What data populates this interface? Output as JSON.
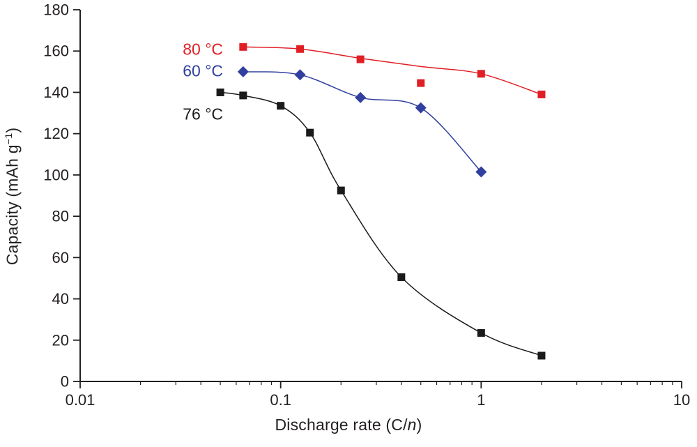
{
  "figure": {
    "background": "#ffffff",
    "text_color": "#231f20"
  },
  "axis_labels": {
    "x": {
      "pre": "Discharge rate (C/",
      "em": "n",
      "post": ")"
    },
    "y": {
      "pre": "Capacity (mAh g",
      "sup": "−1",
      "post": ")"
    }
  },
  "chart_data": {
    "type": "scatter",
    "x_scale": "log",
    "xlim": [
      0.01,
      10
    ],
    "ylim": [
      0,
      180
    ],
    "xlabel": "Discharge rate (C/n)",
    "ylabel": "Capacity (mAh g-1)",
    "grid": false,
    "x_major_ticks": [
      {
        "value": 0.01,
        "label": "0.01"
      },
      {
        "value": 0.1,
        "label": "0.1"
      },
      {
        "value": 1,
        "label": "1"
      },
      {
        "value": 10,
        "label": "10"
      }
    ],
    "y_ticks": [
      {
        "value": 0,
        "label": "0"
      },
      {
        "value": 20,
        "label": "20"
      },
      {
        "value": 40,
        "label": "40"
      },
      {
        "value": 60,
        "label": "60"
      },
      {
        "value": 80,
        "label": "80"
      },
      {
        "value": 100,
        "label": "100"
      },
      {
        "value": 120,
        "label": "120"
      },
      {
        "value": 140,
        "label": "140"
      },
      {
        "value": 160,
        "label": "160"
      },
      {
        "value": 180,
        "label": "180"
      }
    ],
    "series": [
      {
        "name": "80 °C",
        "color": "#e01f25",
        "marker": "square",
        "label_pos": {
          "x": 0.0325,
          "y": 161
        },
        "points": [
          [
            0.065,
            162
          ],
          [
            0.125,
            161
          ],
          [
            0.25,
            156
          ],
          [
            0.5,
            144.5
          ],
          [
            1,
            149
          ],
          [
            2,
            139
          ]
        ],
        "line": [
          [
            0.065,
            162
          ],
          [
            0.125,
            161
          ],
          [
            0.25,
            156.5
          ],
          [
            0.5,
            152.5
          ],
          [
            1,
            149
          ],
          [
            2,
            139
          ]
        ]
      },
      {
        "name": "60 °C",
        "color": "#31409e",
        "marker": "diamond",
        "label_pos": {
          "x": 0.0325,
          "y": 150.5
        },
        "points": [
          [
            0.065,
            150
          ],
          [
            0.125,
            148.5
          ],
          [
            0.25,
            137.5
          ],
          [
            0.5,
            132.5
          ],
          [
            1,
            101.5
          ]
        ],
        "line": [
          [
            0.065,
            150
          ],
          [
            0.125,
            148.5
          ],
          [
            0.25,
            137.5
          ],
          [
            0.5,
            132.5
          ],
          [
            1,
            101.5
          ]
        ]
      },
      {
        "name": "76 °C",
        "color": "#1a1a1a",
        "marker": "square",
        "label_pos": {
          "x": 0.0325,
          "y": 129.5
        },
        "points": [
          [
            0.05,
            140
          ],
          [
            0.065,
            138.5
          ],
          [
            0.1,
            133.5
          ],
          [
            0.14,
            120.5
          ],
          [
            0.2,
            92.5
          ],
          [
            0.4,
            50.5
          ],
          [
            1,
            23.5
          ],
          [
            2,
            12.5
          ]
        ],
        "line": [
          [
            0.05,
            140
          ],
          [
            0.065,
            138.5
          ],
          [
            0.1,
            133.5
          ],
          [
            0.14,
            120.5
          ],
          [
            0.2,
            92.5
          ],
          [
            0.4,
            50.5
          ],
          [
            1,
            23.5
          ],
          [
            2,
            12.5
          ]
        ]
      }
    ]
  }
}
